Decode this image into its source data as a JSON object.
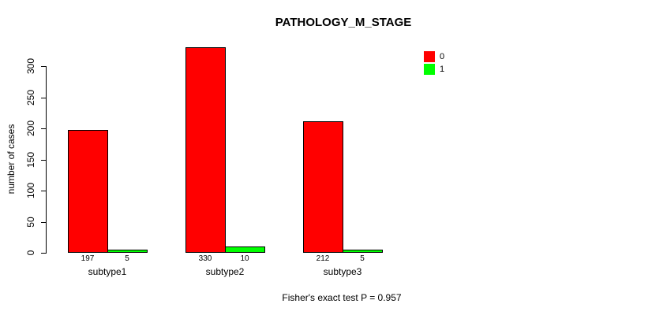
{
  "chart_data": {
    "type": "bar",
    "title": "PATHOLOGY_M_STAGE",
    "ylabel": "number of cases",
    "xlabel": "",
    "categories": [
      "subtype1",
      "subtype2",
      "subtype3"
    ],
    "series": [
      {
        "name": "0",
        "color": "#ff0000",
        "values": [
          197,
          330,
          212
        ]
      },
      {
        "name": "1",
        "color": "#00ff00",
        "values": [
          5,
          10,
          5
        ]
      }
    ],
    "yticks": [
      0,
      50,
      100,
      150,
      200,
      250,
      300
    ],
    "ylim": [
      0,
      330
    ],
    "grid": false,
    "legend_position": "top-right",
    "bar_value_labels": true,
    "annotation": "Fisher's exact test P = 0.957"
  }
}
